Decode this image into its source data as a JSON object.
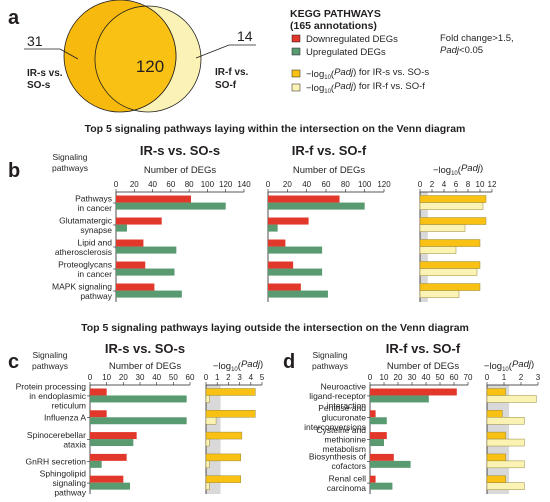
{
  "panels": {
    "a": "a",
    "b": "b",
    "c": "c",
    "d": "d"
  },
  "venn": {
    "left_count": "31",
    "center_count": "120",
    "right_count": "14",
    "left_label": [
      "IR-s vs.",
      "SO-s"
    ],
    "right_label": [
      "IR-f vs.",
      "SO-f"
    ]
  },
  "legend": {
    "title": "KEGG PATHWAYS",
    "subtitle": "(165 annotations)",
    "down": "Downregulated DEGs",
    "up": "Upregulated DEGs",
    "padj_s": "−log10(Padj) for IR-s vs. SO-s",
    "padj_f": "−log10(Padj) for IR-f vs. SO-f",
    "criteria": [
      "Fold change>1.5,",
      "Padj<0.05"
    ]
  },
  "colors": {
    "down": "#e2372b",
    "up": "#5a9a70",
    "padj_s": "#f8c114",
    "padj_f": "#faf3b4",
    "venn_s": "#f7b90d",
    "venn_f": "#fbf3b6",
    "threshold_band": "#d9d9d9"
  },
  "titles": {
    "inside": "Top 5 signaling pathways laying within the intersection on the Venn diagram",
    "outside": "Top 5 signaling pathways laying outside the intersection on the Venn diagram"
  },
  "axis_titles": {
    "signaling": [
      "Signaling",
      "pathways"
    ],
    "degs": "Number of DEGs",
    "padj": "−log10(Padj)"
  },
  "chart_data": [
    {
      "id": "b-IRs",
      "type": "bar",
      "title": "IR-s vs. SO-s",
      "xlabel": "Number of DEGs",
      "ylabel": "Signaling pathways",
      "categories": [
        "Pathways in cancer",
        "Glutamatergic synapse",
        "Lipid and atherosclerosis",
        "Proteoglycans in cancer",
        "MAPK signaling pathway"
      ],
      "category_lines": [
        [
          "Pathways",
          "in cancer"
        ],
        [
          "Glutamatergic",
          "synapse"
        ],
        [
          "Lipid and",
          "atherosclerosis"
        ],
        [
          "Proteoglycans",
          "in cancer"
        ],
        [
          "MAPK signaling",
          "pathway"
        ]
      ],
      "series": [
        {
          "name": "Downregulated DEGs",
          "values": [
            82,
            50,
            30,
            32,
            42
          ]
        },
        {
          "name": "Upregulated DEGs",
          "values": [
            120,
            12,
            66,
            64,
            72
          ]
        }
      ],
      "xlim": [
        0,
        140
      ],
      "xticks": [
        0,
        20,
        40,
        60,
        80,
        100,
        120,
        140
      ]
    },
    {
      "id": "b-IRf",
      "type": "bar",
      "title": "IR-f vs. SO-f",
      "xlabel": "Number of DEGs",
      "series": [
        {
          "name": "Downregulated DEGs",
          "values": [
            74,
            42,
            18,
            26,
            34
          ]
        },
        {
          "name": "Upregulated DEGs",
          "values": [
            100,
            10,
            56,
            56,
            62
          ]
        }
      ],
      "xlim": [
        0,
        120
      ],
      "xticks": [
        0,
        20,
        40,
        60,
        80,
        100,
        120
      ]
    },
    {
      "id": "b-padj",
      "type": "bar",
      "xlabel": "−log10(Padj)",
      "series": [
        {
          "name": "−log10(Padj) for IR-s vs. SO-s",
          "values": [
            11.0,
            11.0,
            10.0,
            10.0,
            10.0
          ]
        },
        {
          "name": "−log10(Padj) for IR-f vs. SO-f",
          "values": [
            10.5,
            7.5,
            6.0,
            9.5,
            6.5
          ]
        }
      ],
      "xlim": [
        0,
        12
      ],
      "xticks": [
        0,
        2,
        4,
        6,
        8,
        10,
        12
      ],
      "threshold": 1.3
    },
    {
      "id": "c-IRs",
      "type": "bar",
      "title": "IR-s vs. SO-s",
      "xlabel": "Number of DEGs",
      "ylabel": "Signaling pathways",
      "categories": [
        "Protein processing in endoplasmic reticulum",
        "Influenza A",
        "Spinocerebellar ataxia",
        "GnRH secretion",
        "Sphingolipid signaling pathway"
      ],
      "category_lines": [
        [
          "Protein processing",
          "in endoplasmic",
          "reticulum"
        ],
        [
          "Influenza A"
        ],
        [
          "Spinocerebellar",
          "ataxia"
        ],
        [
          "GnRH secretion"
        ],
        [
          "Sphingolipid",
          "signaling",
          "pathway"
        ]
      ],
      "series": [
        {
          "name": "Downregulated DEGs",
          "values": [
            10,
            10,
            28,
            22,
            20
          ]
        },
        {
          "name": "Upregulated DEGs",
          "values": [
            58,
            58,
            26,
            7,
            24
          ]
        }
      ],
      "xlim": [
        0,
        60
      ],
      "xticks": [
        0,
        10,
        20,
        30,
        40,
        50,
        60
      ]
    },
    {
      "id": "c-padj",
      "type": "bar",
      "xlabel": "−log10(Padj)",
      "series": [
        {
          "name": "−log10(Padj) for IR-s vs. SO-s",
          "values": [
            4.4,
            4.4,
            3.2,
            3.1,
            3.1
          ]
        },
        {
          "name": "−log10(Padj) for IR-f vs. SO-f",
          "values": [
            0.3,
            0.9,
            0.3,
            0.3,
            0.3
          ]
        }
      ],
      "xlim": [
        0,
        5
      ],
      "xticks": [
        0,
        1,
        2,
        3,
        4,
        5
      ],
      "threshold": 1.3
    },
    {
      "id": "d-IRf",
      "type": "bar",
      "title": "IR-f vs. SO-f",
      "xlabel": "Number of DEGs",
      "ylabel": "Signaling pathways",
      "categories": [
        "Neuroactive ligand-receptor interaction",
        "Pentose and glucuronate interconversions",
        "Cysteine and methionine metabolism",
        "Biosynthesis of cofactors",
        "Renal cell carcinoma"
      ],
      "category_lines": [
        [
          "Neuroactive",
          "ligand-receptor",
          "interaction"
        ],
        [
          "Pentose and",
          "glucuronate",
          "interconversions"
        ],
        [
          "Cysteine and",
          "methionine",
          "metabolism"
        ],
        [
          "Biosynthesis of",
          "cofactors"
        ],
        [
          "Renal cell",
          "carcinoma"
        ]
      ],
      "series": [
        {
          "name": "Downregulated DEGs",
          "values": [
            62,
            4,
            12,
            17,
            4
          ]
        },
        {
          "name": "Upregulated DEGs",
          "values": [
            42,
            12,
            10,
            29,
            16
          ]
        }
      ],
      "xlim": [
        0,
        70
      ],
      "xticks": [
        0,
        10,
        20,
        30,
        40,
        50,
        60,
        70
      ]
    },
    {
      "id": "d-padj",
      "type": "bar",
      "xlabel": "−log10(Padj)",
      "series": [
        {
          "name": "−log10(Padj) for IR-s vs. SO-s",
          "values": [
            1.1,
            0.9,
            1.1,
            1.1,
            1.1
          ]
        },
        {
          "name": "−log10(Padj) for IR-f vs. SO-f",
          "values": [
            2.9,
            2.2,
            2.2,
            2.2,
            2.2
          ]
        }
      ],
      "xlim": [
        0,
        3
      ],
      "xticks": [
        0,
        1,
        2,
        3
      ],
      "threshold": 1.3
    }
  ]
}
